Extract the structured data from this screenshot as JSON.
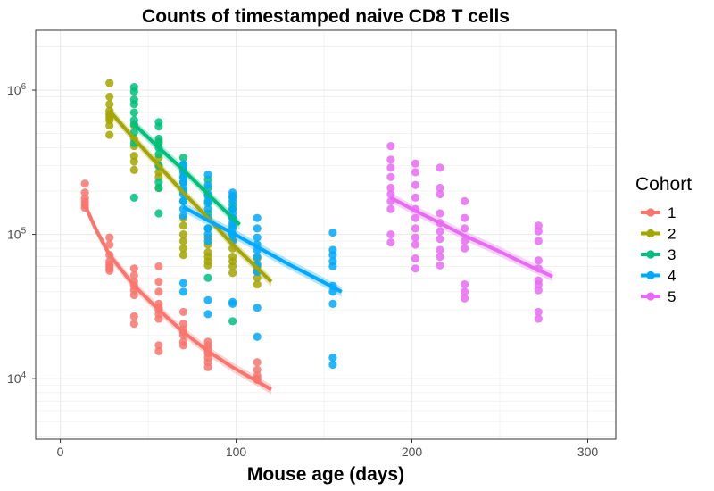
{
  "chart_data": {
    "type": "scatter",
    "title": "Counts of timestamped naive CD8 T cells",
    "xlabel": "Mouse age (days)",
    "ylabel": "",
    "x_ticks": [
      0,
      100,
      200,
      300
    ],
    "y_scale": "log10",
    "y_ticks": [
      {
        "value": 10000,
        "base": "10",
        "exp": "4"
      },
      {
        "value": 100000,
        "base": "10",
        "exp": "5"
      },
      {
        "value": 1000000,
        "base": "10",
        "exp": "6"
      }
    ],
    "xlim": [
      -14,
      316
    ],
    "ylim": [
      3800,
      2600000
    ],
    "grid": true,
    "legend": {
      "title": "Cohort",
      "position": "right"
    },
    "series": [
      {
        "name": "1",
        "color": "#F8766D",
        "points": [
          [
            14,
            225000
          ],
          [
            14,
            195000
          ],
          [
            14,
            178000
          ],
          [
            14,
            168000
          ],
          [
            14,
            160000
          ],
          [
            14,
            153000
          ],
          [
            28,
            95000
          ],
          [
            28,
            85000
          ],
          [
            28,
            72000
          ],
          [
            28,
            65000
          ],
          [
            28,
            62000
          ],
          [
            28,
            60000
          ],
          [
            28,
            58000
          ],
          [
            28,
            56000
          ],
          [
            42,
            58000
          ],
          [
            42,
            52000
          ],
          [
            42,
            47000
          ],
          [
            42,
            44000
          ],
          [
            42,
            41000
          ],
          [
            42,
            38000
          ],
          [
            42,
            27000
          ],
          [
            42,
            24000
          ],
          [
            56,
            60000
          ],
          [
            56,
            47000
          ],
          [
            56,
            40000
          ],
          [
            56,
            33000
          ],
          [
            56,
            31000
          ],
          [
            56,
            30000
          ],
          [
            56,
            28000
          ],
          [
            56,
            26000
          ],
          [
            56,
            17000
          ],
          [
            56,
            15500
          ],
          [
            70,
            29000
          ],
          [
            70,
            24000
          ],
          [
            70,
            22000
          ],
          [
            70,
            21000
          ],
          [
            70,
            20000
          ],
          [
            70,
            18000
          ],
          [
            70,
            17000
          ],
          [
            84,
            18000
          ],
          [
            84,
            17000
          ],
          [
            84,
            16000
          ],
          [
            84,
            15000
          ],
          [
            84,
            14000
          ],
          [
            84,
            13000
          ],
          [
            84,
            12000
          ],
          [
            112,
            13000
          ],
          [
            112,
            11500
          ],
          [
            112,
            10500
          ],
          [
            112,
            10000
          ],
          [
            112,
            9800
          ]
        ],
        "fit": [
          [
            14,
            160000
          ],
          [
            20,
            110000
          ],
          [
            28,
            72000
          ],
          [
            42,
            44000
          ],
          [
            56,
            30000
          ],
          [
            70,
            21000
          ],
          [
            84,
            15500
          ],
          [
            98,
            12000
          ],
          [
            120,
            8400
          ]
        ]
      },
      {
        "name": "2",
        "color": "#A3A500",
        "points": [
          [
            28,
            1120000
          ],
          [
            28,
            900000
          ],
          [
            28,
            800000
          ],
          [
            28,
            720000
          ],
          [
            28,
            680000
          ],
          [
            28,
            650000
          ],
          [
            28,
            620000
          ],
          [
            28,
            570000
          ],
          [
            28,
            490000
          ],
          [
            42,
            570000
          ],
          [
            42,
            460000
          ],
          [
            42,
            410000
          ],
          [
            42,
            350000
          ],
          [
            42,
            320000
          ],
          [
            42,
            280000
          ],
          [
            56,
            440000
          ],
          [
            56,
            340000
          ],
          [
            56,
            300000
          ],
          [
            56,
            270000
          ],
          [
            56,
            250000
          ],
          [
            56,
            210000
          ],
          [
            70,
            130000
          ],
          [
            70,
            115000
          ],
          [
            70,
            100000
          ],
          [
            70,
            90000
          ],
          [
            70,
            80000
          ],
          [
            70,
            72000
          ],
          [
            84,
            95000
          ],
          [
            84,
            85000
          ],
          [
            84,
            75000
          ],
          [
            84,
            70000
          ],
          [
            84,
            65000
          ],
          [
            84,
            61000
          ],
          [
            98,
            92000
          ],
          [
            98,
            80000
          ],
          [
            98,
            70000
          ],
          [
            98,
            65000
          ],
          [
            98,
            60000
          ],
          [
            98,
            54000
          ],
          [
            112,
            68000
          ],
          [
            112,
            60000
          ],
          [
            112,
            56000
          ],
          [
            112,
            50000
          ],
          [
            112,
            45000
          ]
        ],
        "fit": [
          [
            28,
            720000
          ],
          [
            42,
            460000
          ],
          [
            56,
            300000
          ],
          [
            70,
            195000
          ],
          [
            84,
            130000
          ],
          [
            98,
            85000
          ],
          [
            120,
            47000
          ]
        ]
      },
      {
        "name": "3",
        "color": "#00BF7D",
        "points": [
          [
            42,
            1050000
          ],
          [
            42,
            980000
          ],
          [
            42,
            860000
          ],
          [
            42,
            800000
          ],
          [
            42,
            700000
          ],
          [
            42,
            620000
          ],
          [
            42,
            580000
          ],
          [
            42,
            510000
          ],
          [
            42,
            430000
          ],
          [
            42,
            180000
          ],
          [
            56,
            600000
          ],
          [
            56,
            560000
          ],
          [
            56,
            460000
          ],
          [
            56,
            430000
          ],
          [
            56,
            400000
          ],
          [
            56,
            360000
          ],
          [
            56,
            300000
          ],
          [
            56,
            230000
          ],
          [
            56,
            210000
          ],
          [
            56,
            140000
          ],
          [
            70,
            340000
          ],
          [
            70,
            300000
          ],
          [
            70,
            270000
          ],
          [
            70,
            250000
          ],
          [
            70,
            230000
          ],
          [
            70,
            200000
          ],
          [
            70,
            170000
          ],
          [
            84,
            240000
          ],
          [
            84,
            210000
          ],
          [
            84,
            185000
          ],
          [
            84,
            165000
          ],
          [
            84,
            140000
          ],
          [
            84,
            110000
          ],
          [
            84,
            50000
          ],
          [
            98,
            180000
          ],
          [
            98,
            160000
          ],
          [
            98,
            150000
          ],
          [
            98,
            130000
          ],
          [
            98,
            115000
          ],
          [
            98,
            100000
          ],
          [
            98,
            25000
          ]
        ],
        "fit": [
          [
            42,
            580000
          ],
          [
            56,
            400000
          ],
          [
            70,
            280000
          ],
          [
            84,
            190000
          ],
          [
            98,
            130000
          ],
          [
            102,
            117000
          ]
        ]
      },
      {
        "name": "4",
        "color": "#00A9FF",
        "points": [
          [
            70,
            305000
          ],
          [
            70,
            280000
          ],
          [
            70,
            250000
          ],
          [
            70,
            230000
          ],
          [
            70,
            210000
          ],
          [
            70,
            190000
          ],
          [
            70,
            170000
          ],
          [
            70,
            150000
          ],
          [
            70,
            135000
          ],
          [
            70,
            46000
          ],
          [
            70,
            40000
          ],
          [
            84,
            260000
          ],
          [
            84,
            220000
          ],
          [
            84,
            190000
          ],
          [
            84,
            170000
          ],
          [
            84,
            150000
          ],
          [
            84,
            130000
          ],
          [
            84,
            110000
          ],
          [
            84,
            100000
          ],
          [
            84,
            90000
          ],
          [
            84,
            35000
          ],
          [
            84,
            28000
          ],
          [
            98,
            195000
          ],
          [
            98,
            185000
          ],
          [
            98,
            170000
          ],
          [
            98,
            150000
          ],
          [
            98,
            140000
          ],
          [
            98,
            130000
          ],
          [
            98,
            120000
          ],
          [
            98,
            110000
          ],
          [
            98,
            100000
          ],
          [
            98,
            90000
          ],
          [
            98,
            34000
          ],
          [
            98,
            33000
          ],
          [
            112,
            130000
          ],
          [
            112,
            110000
          ],
          [
            112,
            95000
          ],
          [
            112,
            85000
          ],
          [
            112,
            78000
          ],
          [
            112,
            70000
          ],
          [
            112,
            62000
          ],
          [
            112,
            55000
          ],
          [
            112,
            31000
          ],
          [
            112,
            19500
          ],
          [
            155,
            103000
          ],
          [
            155,
            78000
          ],
          [
            155,
            72000
          ],
          [
            155,
            65000
          ],
          [
            155,
            60000
          ],
          [
            155,
            44000
          ],
          [
            155,
            40000
          ],
          [
            155,
            33000
          ],
          [
            155,
            14000
          ],
          [
            155,
            12500
          ]
        ],
        "fit": [
          [
            70,
            155000
          ],
          [
            84,
            125000
          ],
          [
            98,
            102000
          ],
          [
            112,
            82000
          ],
          [
            130,
            62000
          ],
          [
            145,
            50000
          ],
          [
            160,
            40000
          ]
        ]
      },
      {
        "name": "5",
        "color": "#E76BF3",
        "points": [
          [
            188,
            410000
          ],
          [
            188,
            330000
          ],
          [
            188,
            290000
          ],
          [
            188,
            250000
          ],
          [
            188,
            210000
          ],
          [
            188,
            190000
          ],
          [
            188,
            170000
          ],
          [
            188,
            150000
          ],
          [
            188,
            100000
          ],
          [
            188,
            88000
          ],
          [
            202,
            310000
          ],
          [
            202,
            270000
          ],
          [
            202,
            220000
          ],
          [
            202,
            180000
          ],
          [
            202,
            150000
          ],
          [
            202,
            130000
          ],
          [
            202,
            110000
          ],
          [
            202,
            95000
          ],
          [
            202,
            85000
          ],
          [
            202,
            68000
          ],
          [
            202,
            58000
          ],
          [
            216,
            290000
          ],
          [
            216,
            210000
          ],
          [
            216,
            190000
          ],
          [
            216,
            140000
          ],
          [
            216,
            120000
          ],
          [
            216,
            105000
          ],
          [
            216,
            93000
          ],
          [
            216,
            78000
          ],
          [
            216,
            70000
          ],
          [
            216,
            61000
          ],
          [
            230,
            170000
          ],
          [
            230,
            130000
          ],
          [
            230,
            110000
          ],
          [
            230,
            90000
          ],
          [
            230,
            80000
          ],
          [
            230,
            45000
          ],
          [
            230,
            40000
          ],
          [
            230,
            36000
          ],
          [
            272,
            115000
          ],
          [
            272,
            105000
          ],
          [
            272,
            90000
          ],
          [
            272,
            66000
          ],
          [
            272,
            58000
          ],
          [
            272,
            48000
          ],
          [
            272,
            45000
          ],
          [
            272,
            41000
          ],
          [
            272,
            29000
          ],
          [
            272,
            26000
          ]
        ],
        "fit": [
          [
            188,
            180000
          ],
          [
            200,
            150000
          ],
          [
            216,
            120000
          ],
          [
            230,
            98000
          ],
          [
            250,
            76000
          ],
          [
            265,
            62000
          ],
          [
            280,
            51000
          ]
        ]
      }
    ]
  }
}
